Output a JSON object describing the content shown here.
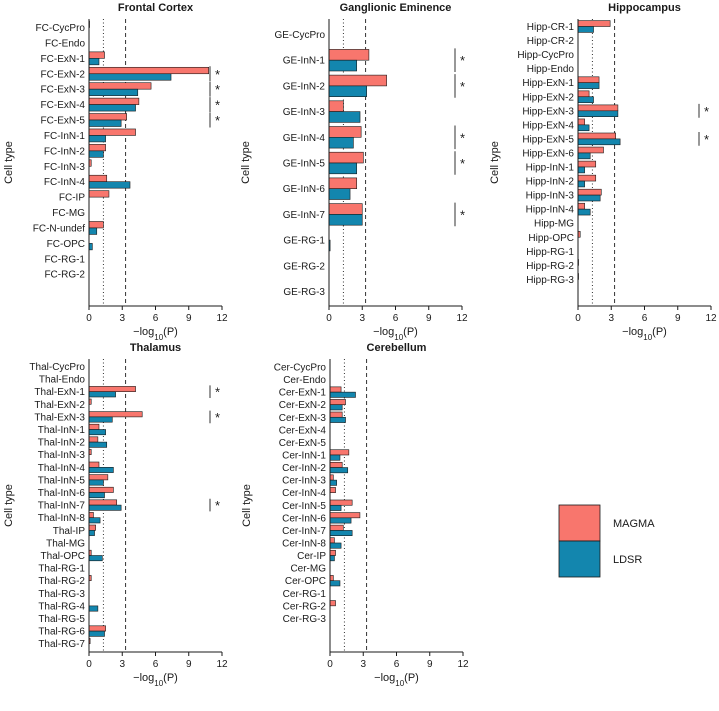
{
  "colors": {
    "magma": "#F8766D",
    "ldsr": "#1386AE",
    "bar_stroke": "#1a1a1a",
    "ref_line": "#333333"
  },
  "thresholds": {
    "nominal": 1.301,
    "bonferroni": 3.3
  },
  "shared": {
    "x_ticks": [
      "0",
      "3",
      "6",
      "9",
      "12"
    ],
    "y_axis_label": "Cell type",
    "x_axis_label": {
      "prefix": "−log",
      "sub": "10",
      "suffix": "(P)"
    },
    "significance_marker": "*"
  },
  "legend": {
    "magma_label": "MAGMA",
    "ldsr_label": "LDSR"
  },
  "chart_data": [
    {
      "type": "bar",
      "title": "Frontal Cortex",
      "xlim": [
        0,
        12
      ],
      "categories": [
        "FC-CycPro",
        "FC-Endo",
        "FC-ExN-1",
        "FC-ExN-2",
        "FC-ExN-3",
        "FC-ExN-4",
        "FC-ExN-5",
        "FC-InN-1",
        "FC-InN-2",
        "FC-InN-3",
        "FC-InN-4",
        "FC-IP",
        "FC-MG",
        "FC-N-undef",
        "FC-OPC",
        "FC-RG-1",
        "FC-RG-2"
      ],
      "series": [
        {
          "name": "MAGMA",
          "values": [
            0.05,
            0,
            1.4,
            10.8,
            5.6,
            4.5,
            3.4,
            4.2,
            1.5,
            0.2,
            1.6,
            1.8,
            0,
            1.3,
            0,
            0,
            0
          ]
        },
        {
          "name": "LDSR",
          "values": [
            0,
            0,
            0.9,
            7.4,
            4.4,
            4.2,
            2.9,
            1.5,
            1.3,
            0,
            3.7,
            0,
            0,
            0.7,
            0.3,
            0,
            0
          ]
        }
      ],
      "significant": [
        "FC-ExN-2",
        "FC-ExN-3",
        "FC-ExN-4",
        "FC-ExN-5"
      ]
    },
    {
      "type": "bar",
      "title": "Ganglionic Eminence",
      "xlim": [
        0,
        12
      ],
      "categories": [
        "GE-CycPro",
        "GE-InN-1",
        "GE-InN-2",
        "GE-InN-3",
        "GE-InN-4",
        "GE-InN-5",
        "GE-InN-6",
        "GE-InN-7",
        "GE-RG-1",
        "GE-RG-2",
        "GE-RG-3"
      ],
      "series": [
        {
          "name": "MAGMA",
          "values": [
            0,
            3.6,
            5.2,
            1.3,
            2.9,
            3.1,
            2.5,
            3.0,
            0,
            0,
            0
          ]
        },
        {
          "name": "LDSR",
          "values": [
            0,
            2.5,
            3.4,
            2.8,
            2.2,
            2.5,
            1.9,
            3.0,
            0.1,
            0,
            0
          ]
        }
      ],
      "significant": [
        "GE-InN-1",
        "GE-InN-2",
        "GE-InN-4",
        "GE-InN-5",
        "GE-InN-7"
      ]
    },
    {
      "type": "bar",
      "title": "Hippocampus",
      "xlim": [
        0,
        12
      ],
      "categories": [
        "Hipp-CR-1",
        "Hipp-CR-2",
        "Hipp-CycPro",
        "Hipp-Endo",
        "Hipp-ExN-1",
        "Hipp-ExN-2",
        "Hipp-ExN-3",
        "Hipp-ExN-4",
        "Hipp-ExN-5",
        "Hipp-ExN-6",
        "Hipp-InN-1",
        "Hipp-InN-2",
        "Hipp-InN-3",
        "Hipp-InN-4",
        "Hipp-MG",
        "Hipp-OPC",
        "Hipp-RG-1",
        "Hipp-RG-2",
        "Hipp-RG-3"
      ],
      "series": [
        {
          "name": "MAGMA",
          "values": [
            2.9,
            0,
            0,
            0,
            1.9,
            1.0,
            3.6,
            0.6,
            3.4,
            2.3,
            1.6,
            1.6,
            2.1,
            0.6,
            0,
            0.2,
            0,
            0.05,
            0.05
          ]
        },
        {
          "name": "LDSR",
          "values": [
            1.4,
            0,
            0,
            0,
            1.9,
            1.4,
            3.6,
            1.0,
            3.8,
            1.1,
            0.6,
            0.6,
            2.0,
            1.1,
            0,
            0,
            0,
            0,
            0
          ]
        }
      ],
      "significant": [
        "Hipp-ExN-3",
        "Hipp-ExN-5"
      ]
    },
    {
      "type": "bar",
      "title": "Thalamus",
      "xlim": [
        0,
        12
      ],
      "categories": [
        "Thal-CycPro",
        "Thal-Endo",
        "Thal-ExN-1",
        "Thal-ExN-2",
        "Thal-ExN-3",
        "Thal-InN-1",
        "Thal-InN-2",
        "Thal-InN-3",
        "Thal-InN-4",
        "Thal-InN-5",
        "Thal-InN-6",
        "Thal-InN-7",
        "Thal-InN-8",
        "Thal-IP",
        "Thal-MG",
        "Thal-OPC",
        "Thal-RG-1",
        "Thal-RG-2",
        "Thal-RG-3",
        "Thal-RG-4",
        "Thal-RG-5",
        "Thal-RG-6",
        "Thal-RG-7"
      ],
      "series": [
        {
          "name": "MAGMA",
          "values": [
            0,
            0,
            4.2,
            0.2,
            4.8,
            0.9,
            0.8,
            0.2,
            0.9,
            1.7,
            2.2,
            2.5,
            0.4,
            0.6,
            0,
            0.2,
            0,
            0.2,
            0,
            0,
            0,
            1.5,
            0.1
          ]
        },
        {
          "name": "LDSR",
          "values": [
            0,
            0,
            2.4,
            0,
            2.1,
            1.5,
            1.6,
            0,
            2.2,
            1.3,
            1.4,
            2.9,
            1.0,
            0.5,
            0,
            1.2,
            0,
            0,
            0,
            0.8,
            0,
            1.4,
            0
          ]
        }
      ],
      "significant": [
        "Thal-ExN-1",
        "Thal-ExN-3",
        "Thal-InN-7"
      ]
    },
    {
      "type": "bar",
      "title": "Cerebellum",
      "xlim": [
        0,
        12
      ],
      "categories": [
        "Cer-CycPro",
        "Cer-Endo",
        "Cer-ExN-1",
        "Cer-ExN-2",
        "Cer-ExN-3",
        "Cer-ExN-4",
        "Cer-ExN-5",
        "Cer-InN-1",
        "Cer-InN-2",
        "Cer-InN-3",
        "Cer-InN-4",
        "Cer-InN-5",
        "Cer-InN-6",
        "Cer-InN-7",
        "Cer-InN-8",
        "Cer-IP",
        "Cer-MG",
        "Cer-OPC",
        "Cer-RG-1",
        "Cer-RG-2",
        "Cer-RG-3"
      ],
      "series": [
        {
          "name": "MAGMA",
          "values": [
            0,
            0,
            1.0,
            1.4,
            1.1,
            0,
            0,
            1.7,
            1.1,
            0.3,
            0.5,
            2.0,
            2.7,
            1.2,
            0.4,
            0.5,
            0,
            0.3,
            0,
            0.5,
            0
          ]
        },
        {
          "name": "LDSR",
          "values": [
            0,
            0,
            2.3,
            1.1,
            1.4,
            0,
            0,
            0.9,
            1.6,
            0.6,
            0,
            1.0,
            1.9,
            2.0,
            1.0,
            0.4,
            0,
            0.9,
            0,
            0,
            0
          ]
        }
      ],
      "significant": []
    }
  ]
}
